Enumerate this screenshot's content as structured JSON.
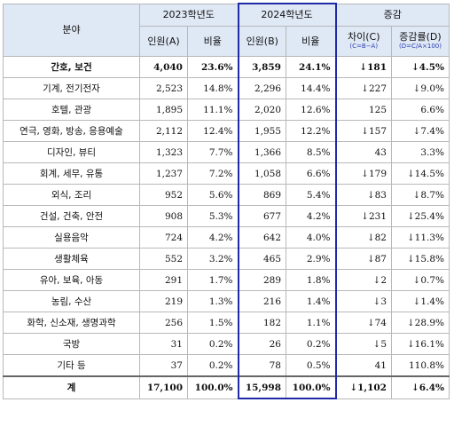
{
  "header": {
    "field": "분야",
    "y2023": "2023학년도",
    "y2024": "2024학년도",
    "change": "증감",
    "count_a": "인원(A)",
    "ratio": "비율",
    "count_b": "인원(B)",
    "diff": "차이(C)",
    "diff_formula": "(C=B−A)",
    "rate": "증감률(D)",
    "rate_formula": "(D=C/A×100)"
  },
  "rows": [
    {
      "field": "간호, 보건",
      "a": "4,040",
      "ar": "23.6%",
      "b": "3,859",
      "br": "24.1%",
      "c": "↓181",
      "d": "↓4.5%"
    },
    {
      "field": "기계, 전기전자",
      "a": "2,523",
      "ar": "14.8%",
      "b": "2,296",
      "br": "14.4%",
      "c": "↓227",
      "d": "↓9.0%"
    },
    {
      "field": "호텔, 관광",
      "a": "1,895",
      "ar": "11.1%",
      "b": "2,020",
      "br": "12.6%",
      "c": "125",
      "d": "6.6%"
    },
    {
      "field": "연극, 영화, 방송, 응용예술",
      "a": "2,112",
      "ar": "12.4%",
      "b": "1,955",
      "br": "12.2%",
      "c": "↓157",
      "d": "↓7.4%"
    },
    {
      "field": "디자인, 뷰티",
      "a": "1,323",
      "ar": "7.7%",
      "b": "1,366",
      "br": "8.5%",
      "c": "43",
      "d": "3.3%"
    },
    {
      "field": "회계, 세무, 유통",
      "a": "1,237",
      "ar": "7.2%",
      "b": "1,058",
      "br": "6.6%",
      "c": "↓179",
      "d": "↓14.5%"
    },
    {
      "field": "외식, 조리",
      "a": "952",
      "ar": "5.6%",
      "b": "869",
      "br": "5.4%",
      "c": "↓83",
      "d": "↓8.7%"
    },
    {
      "field": "건설, 건축, 안전",
      "a": "908",
      "ar": "5.3%",
      "b": "677",
      "br": "4.2%",
      "c": "↓231",
      "d": "↓25.4%"
    },
    {
      "field": "실용음악",
      "a": "724",
      "ar": "4.2%",
      "b": "642",
      "br": "4.0%",
      "c": "↓82",
      "d": "↓11.3%"
    },
    {
      "field": "생활체육",
      "a": "552",
      "ar": "3.2%",
      "b": "465",
      "br": "2.9%",
      "c": "↓87",
      "d": "↓15.8%"
    },
    {
      "field": "유아, 보육, 아동",
      "a": "291",
      "ar": "1.7%",
      "b": "289",
      "br": "1.8%",
      "c": "↓2",
      "d": "↓0.7%"
    },
    {
      "field": "농림, 수산",
      "a": "219",
      "ar": "1.3%",
      "b": "216",
      "br": "1.4%",
      "c": "↓3",
      "d": "↓1.4%"
    },
    {
      "field": "화학, 신소재, 생명과학",
      "a": "256",
      "ar": "1.5%",
      "b": "182",
      "br": "1.1%",
      "c": "↓74",
      "d": "↓28.9%"
    },
    {
      "field": "국방",
      "a": "31",
      "ar": "0.2%",
      "b": "26",
      "br": "0.2%",
      "c": "↓5",
      "d": "↓16.1%"
    },
    {
      "field": "기타 등",
      "a": "37",
      "ar": "0.2%",
      "b": "78",
      "br": "0.5%",
      "c": "41",
      "d": "110.8%"
    }
  ],
  "total": {
    "field": "계",
    "a": "17,100",
    "ar": "100.0%",
    "b": "15,998",
    "br": "100.0%",
    "c": "↓1,102",
    "d": "↓6.4%"
  },
  "bold_first_row": true
}
